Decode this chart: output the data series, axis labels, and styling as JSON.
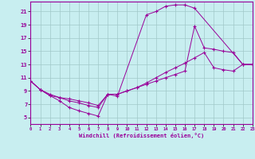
{
  "xlabel": "Windchill (Refroidissement éolien,°C)",
  "bg_color": "#c8eef0",
  "line_color": "#990099",
  "xlim": [
    0,
    23
  ],
  "ylim": [
    4,
    22.5
  ],
  "xticks": [
    0,
    1,
    2,
    3,
    4,
    5,
    6,
    7,
    8,
    9,
    10,
    11,
    12,
    13,
    14,
    15,
    16,
    17,
    18,
    19,
    20,
    21,
    22,
    23
  ],
  "yticks": [
    5,
    7,
    9,
    11,
    13,
    15,
    17,
    19,
    21
  ],
  "grid_color": "#a0c8c8",
  "series": [
    {
      "x": [
        0,
        1,
        2,
        3,
        4,
        5,
        6,
        7,
        8,
        9,
        12,
        13,
        14,
        15,
        16,
        17,
        22,
        23
      ],
      "y": [
        10.5,
        9.2,
        8.3,
        7.5,
        6.5,
        6.0,
        5.6,
        5.2,
        8.5,
        8.2,
        20.5,
        21.0,
        21.8,
        22.0,
        22.0,
        21.5,
        13.0,
        13.0
      ]
    },
    {
      "x": [
        0,
        1,
        2,
        3,
        4,
        5,
        6,
        7,
        8,
        9,
        10,
        11,
        12,
        13,
        14,
        15,
        16,
        17,
        18,
        19,
        20,
        21,
        22,
        23
      ],
      "y": [
        10.5,
        9.2,
        8.5,
        8.0,
        7.5,
        7.2,
        6.8,
        6.5,
        8.5,
        8.5,
        9.0,
        9.5,
        10.0,
        10.5,
        11.0,
        11.5,
        12.0,
        18.8,
        15.5,
        15.3,
        15.0,
        14.8,
        13.0,
        13.0
      ]
    },
    {
      "x": [
        0,
        1,
        2,
        3,
        4,
        5,
        6,
        7,
        8,
        9,
        10,
        11,
        12,
        13,
        14,
        15,
        16,
        17,
        18,
        19,
        20,
        21,
        22,
        23
      ],
      "y": [
        10.5,
        9.2,
        8.3,
        8.0,
        7.8,
        7.5,
        7.2,
        6.8,
        8.5,
        8.5,
        9.0,
        9.5,
        10.2,
        11.0,
        11.8,
        12.5,
        13.2,
        14.0,
        14.8,
        12.5,
        12.2,
        12.0,
        13.0,
        13.0
      ]
    }
  ]
}
